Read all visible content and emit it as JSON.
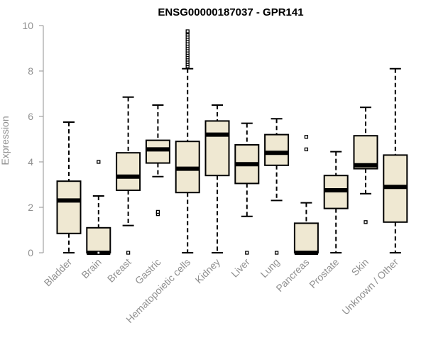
{
  "chart_data": {
    "type": "boxplot",
    "title": "ENSG00000187037 - GPR141",
    "xlabel": "",
    "ylabel": "Expression",
    "ylim": [
      0,
      10
    ],
    "yticks": [
      "0",
      "2",
      "4",
      "6",
      "8",
      "10"
    ],
    "grid": false,
    "colors": {
      "box_fill": "#efe8d2",
      "box_edge": "#000000",
      "axis": "#909090"
    },
    "categories": [
      "Bladder",
      "Brain",
      "Breast",
      "Gastric",
      "Hematopoietic cells",
      "Kidney",
      "Liver",
      "Lung",
      "Pancreas",
      "Prostate",
      "Skin",
      "Unknown / Other"
    ],
    "boxes": [
      {
        "category": "Bladder",
        "min": 0.0,
        "q1": 0.85,
        "median": 2.3,
        "q3": 3.15,
        "max": 5.75,
        "outliers": []
      },
      {
        "category": "Brain",
        "min": 0.0,
        "q1": 0.0,
        "median": 0.0,
        "q3": 1.1,
        "max": 2.5,
        "outliers": [
          0.0,
          4.0
        ]
      },
      {
        "category": "Breast",
        "min": 1.2,
        "q1": 2.75,
        "median": 3.35,
        "q3": 4.4,
        "max": 6.85,
        "outliers": [
          0.0
        ]
      },
      {
        "category": "Gastric",
        "min": 3.35,
        "q1": 3.95,
        "median": 4.55,
        "q3": 4.95,
        "max": 6.5,
        "outliers": [
          1.7,
          1.8
        ]
      },
      {
        "category": "Hematopoietic cells",
        "min": 0.0,
        "q1": 2.65,
        "median": 3.7,
        "q3": 4.9,
        "max": 8.1,
        "outliers": [
          8.2,
          8.3,
          8.4,
          8.5,
          8.6,
          8.7,
          8.8,
          8.9,
          9.0,
          9.1,
          9.2,
          9.3,
          9.4,
          9.5,
          9.6,
          9.7,
          9.75
        ]
      },
      {
        "category": "Kidney",
        "min": 0.0,
        "q1": 3.4,
        "median": 5.2,
        "q3": 5.8,
        "max": 6.5,
        "outliers": []
      },
      {
        "category": "Liver",
        "min": 1.6,
        "q1": 3.05,
        "median": 3.9,
        "q3": 4.75,
        "max": 5.7,
        "outliers": [
          0.0
        ]
      },
      {
        "category": "Lung",
        "min": 2.3,
        "q1": 3.85,
        "median": 4.4,
        "q3": 5.2,
        "max": 5.9,
        "outliers": [
          0.0
        ]
      },
      {
        "category": "Pancreas",
        "min": 0.0,
        "q1": 0.0,
        "median": 0.0,
        "q3": 1.3,
        "max": 2.2,
        "outliers": [
          4.55,
          5.1
        ]
      },
      {
        "category": "Prostate",
        "min": 0.0,
        "q1": 1.95,
        "median": 2.75,
        "q3": 3.4,
        "max": 4.45,
        "outliers": []
      },
      {
        "category": "Skin",
        "min": 2.6,
        "q1": 3.7,
        "median": 3.85,
        "q3": 5.15,
        "max": 6.4,
        "outliers": [
          1.35
        ]
      },
      {
        "category": "Unknown / Other",
        "min": 0.0,
        "q1": 1.35,
        "median": 2.9,
        "q3": 4.3,
        "max": 8.1,
        "outliers": []
      }
    ]
  }
}
